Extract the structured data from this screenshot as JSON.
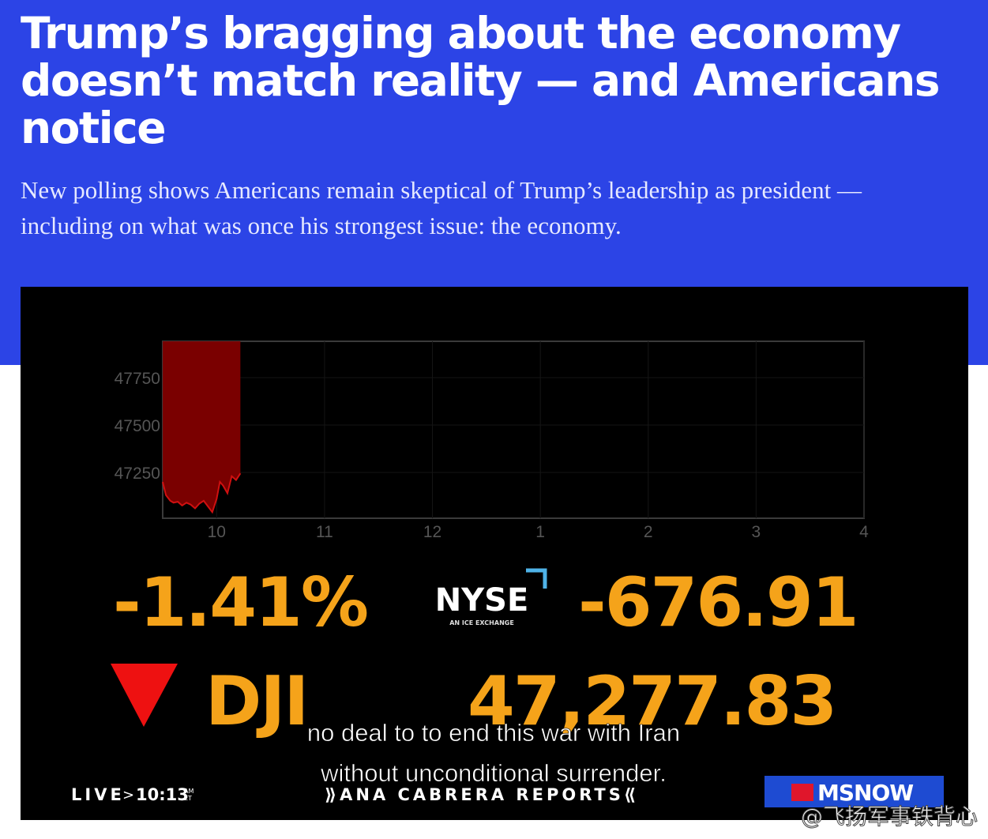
{
  "header": {
    "title_lines": [
      "Trump’s bragging about the economy",
      "doesn’t match reality — and Americans",
      "notice"
    ],
    "subtitle_lines": [
      "New polling shows Americans remain skeptical of Trump’s leadership as president —",
      "including on what was once his strongest issue: the economy."
    ]
  },
  "video": {
    "chart": {
      "type": "area",
      "color": "#7a0000",
      "line_color": "#d01010",
      "xlim": [
        9.5,
        16
      ],
      "ylim": [
        47008,
        47942
      ],
      "yticks": [
        47250,
        47500,
        47750
      ],
      "xticks": [
        {
          "value": 10,
          "label": "10"
        },
        {
          "value": 11,
          "label": "11"
        },
        {
          "value": 12,
          "label": "12"
        },
        {
          "value": 13,
          "label": "1"
        },
        {
          "value": 14,
          "label": "2"
        },
        {
          "value": 15,
          "label": "3"
        },
        {
          "value": 16,
          "label": "4"
        }
      ],
      "x": [
        9.5,
        9.53,
        9.57,
        9.6,
        9.64,
        9.68,
        9.72,
        9.76,
        9.8,
        9.84,
        9.88,
        9.92,
        9.96,
        10.0,
        10.03,
        10.06,
        10.1,
        10.14,
        10.18,
        10.22
      ],
      "values": [
        47200,
        47130,
        47100,
        47090,
        47095,
        47075,
        47090,
        47080,
        47060,
        47085,
        47100,
        47070,
        47040,
        47110,
        47200,
        47180,
        47140,
        47230,
        47210,
        47245
      ]
    },
    "percent": "-1.41%",
    "change": "-676.91",
    "index": "DJI",
    "level": "47,277.83",
    "exchange": "NYSE",
    "exchange_tag": "AN ICE EXCHANGE",
    "captions": [
      "no deal to to end this war with Iran",
      "without unconditional surrender."
    ],
    "live": "LIVE",
    "live_sep": ">",
    "time": "10:13",
    "time_am": "AM",
    "time_zone": "ET",
    "show": "⟫ANA CABRERA REPORTS⟪",
    "network": "MSNOW"
  },
  "watermark": "@飞扬军事铁背心"
}
